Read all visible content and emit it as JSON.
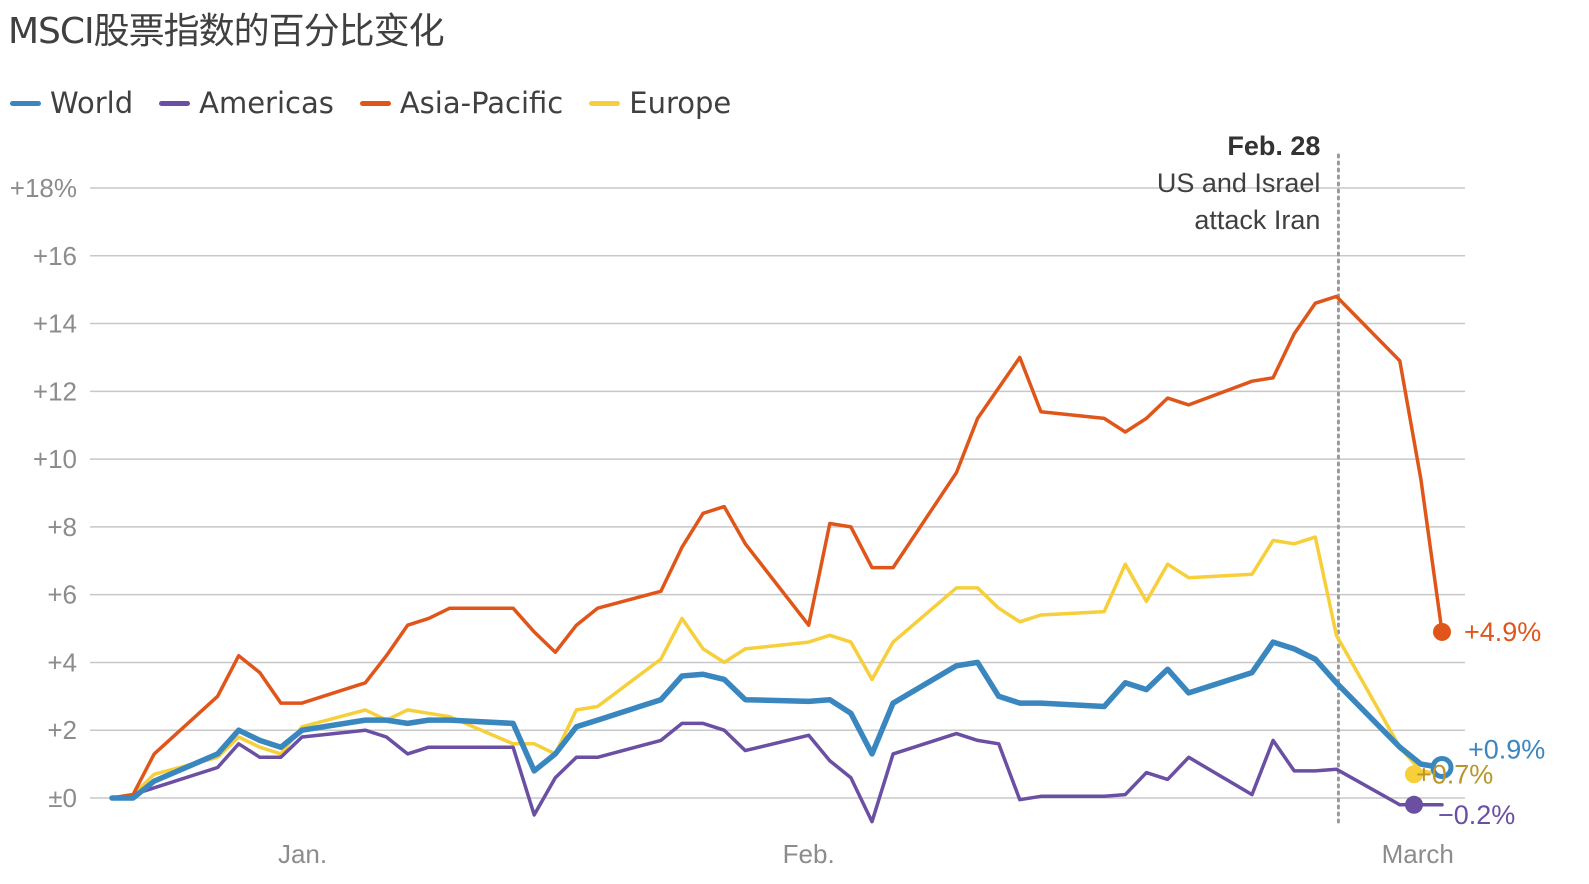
{
  "title": "MSCI股票指数的百分比变化",
  "colors": {
    "World": "#3a87bf",
    "Americas": "#6a4fa3",
    "Asia-Pacific": "#e0561a",
    "Europe": "#f6cf3a"
  },
  "chart_data": {
    "type": "line",
    "title": "MSCI股票指数的百分比变化",
    "x_axis_type": "date",
    "x_ticks": [
      {
        "date": "2026-01-05",
        "label": "Jan."
      },
      {
        "date": "2026-02-02",
        "label": "Feb."
      },
      {
        "date": "2026-03-02",
        "label": "March"
      }
    ],
    "y_ticks": [
      {
        "value": 0,
        "label": "±0"
      },
      {
        "value": 2,
        "label": "+2"
      },
      {
        "value": 4,
        "label": "+4"
      },
      {
        "value": 6,
        "label": "+6"
      },
      {
        "value": 8,
        "label": "+8"
      },
      {
        "value": 10,
        "label": "+10"
      },
      {
        "value": 12,
        "label": "+12"
      },
      {
        "value": 14,
        "label": "+14"
      },
      {
        "value": 16,
        "label": "+16"
      },
      {
        "value": 18,
        "label": "+18%"
      }
    ],
    "ylim": [
      0,
      18
    ],
    "grid": true,
    "legend_position": "top-left",
    "annotation": {
      "date": "2026-02-27",
      "label_date": "Feb. 28",
      "label_lines": [
        "US and Israel",
        "attack Iran"
      ]
    },
    "dates": [
      "2025-12-31",
      "2026-01-01",
      "2026-01-02",
      "2026-01-05",
      "2026-01-06",
      "2026-01-07",
      "2026-01-08",
      "2026-01-09",
      "2026-01-12",
      "2026-01-13",
      "2026-01-14",
      "2026-01-15",
      "2026-01-16",
      "2026-01-19",
      "2026-01-20",
      "2026-01-21",
      "2026-01-22",
      "2026-01-23",
      "2026-01-26",
      "2026-01-27",
      "2026-01-28",
      "2026-01-29",
      "2026-01-30",
      "2026-02-02",
      "2026-02-03",
      "2026-02-04",
      "2026-02-05",
      "2026-02-06",
      "2026-02-09",
      "2026-02-10",
      "2026-02-11",
      "2026-02-12",
      "2026-02-13",
      "2026-02-16",
      "2026-02-17",
      "2026-02-18",
      "2026-02-19",
      "2026-02-20",
      "2026-02-23",
      "2026-02-24",
      "2026-02-25",
      "2026-02-26",
      "2026-02-27",
      "2026-03-02",
      "2026-03-03",
      "2026-03-04"
    ],
    "series": [
      {
        "name": "World",
        "values": [
          0,
          0.0,
          0.5,
          1.3,
          2.0,
          1.7,
          1.5,
          2.0,
          2.3,
          2.3,
          2.2,
          2.3,
          2.3,
          2.2,
          0.8,
          1.3,
          2.1,
          2.3,
          2.9,
          3.6,
          3.65,
          3.5,
          2.9,
          2.85,
          2.9,
          2.5,
          1.3,
          2.8,
          3.9,
          4.0,
          3.0,
          2.8,
          2.8,
          2.7,
          3.4,
          3.2,
          3.8,
          3.1,
          3.7,
          4.6,
          4.4,
          4.1,
          3.4,
          1.5,
          1.0,
          0.9
        ],
        "end_label": "+0.9%"
      },
      {
        "name": "Americas",
        "values": [
          0,
          0.1,
          0.3,
          0.9,
          1.6,
          1.2,
          1.2,
          1.8,
          2.0,
          1.8,
          1.3,
          1.5,
          1.5,
          1.5,
          -0.5,
          0.6,
          1.2,
          1.2,
          1.7,
          2.2,
          2.2,
          2.0,
          1.4,
          1.85,
          1.1,
          0.6,
          -0.7,
          1.3,
          1.9,
          1.7,
          1.6,
          -0.05,
          0.05,
          0.05,
          0.1,
          0.75,
          0.55,
          1.2,
          0.1,
          1.7,
          0.8,
          0.8,
          0.85,
          -0.2,
          -0.2,
          -0.2
        ],
        "end_label": "−0.2%"
      },
      {
        "name": "Asia-Pacific",
        "values": [
          0,
          0.1,
          1.3,
          3.0,
          4.2,
          3.7,
          2.8,
          2.8,
          3.4,
          4.2,
          5.1,
          5.3,
          5.6,
          5.6,
          4.9,
          4.3,
          5.1,
          5.6,
          6.1,
          7.4,
          8.4,
          8.6,
          7.5,
          5.1,
          8.1,
          8.0,
          6.8,
          6.8,
          9.6,
          11.2,
          12.1,
          13.0,
          11.4,
          11.2,
          10.8,
          11.2,
          11.8,
          11.6,
          12.3,
          12.4,
          13.7,
          14.6,
          14.8,
          12.9,
          9.4,
          4.9
        ],
        "end_label": "+4.9%"
      },
      {
        "name": "Europe",
        "values": [
          0,
          0.1,
          0.7,
          1.2,
          1.8,
          1.5,
          1.3,
          2.1,
          2.6,
          2.3,
          2.6,
          2.5,
          2.4,
          1.6,
          1.6,
          1.3,
          2.6,
          2.7,
          4.1,
          5.3,
          4.4,
          4.0,
          4.4,
          4.6,
          4.8,
          4.6,
          3.5,
          4.6,
          6.2,
          6.2,
          5.6,
          5.2,
          5.4,
          5.5,
          6.9,
          5.8,
          6.9,
          6.5,
          6.6,
          7.6,
          7.5,
          7.7,
          4.8,
          1.5,
          0.8,
          0.7
        ],
        "end_label": "+0.7%"
      }
    ]
  }
}
